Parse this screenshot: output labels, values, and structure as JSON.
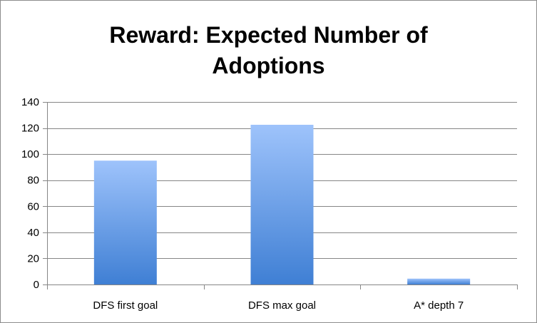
{
  "chart_data": {
    "type": "bar",
    "title_lines": [
      "Reward: Expected Number of",
      "Adoptions"
    ],
    "categories": [
      "DFS first goal",
      "DFS max goal",
      "A* depth 7"
    ],
    "values": [
      95,
      122.5,
      4.5
    ],
    "ylim": [
      0,
      140
    ],
    "yticks": [
      "0",
      "20",
      "40",
      "60",
      "80",
      "100",
      "120",
      "140"
    ],
    "ytick_values": [
      0,
      20,
      40,
      60,
      80,
      100,
      120,
      140
    ],
    "grid": true,
    "legend": "none",
    "colors": {
      "bar_top": "#9ec3fb",
      "bar_bottom": "#3f7fd4",
      "grid": "#868686",
      "axis": "#868686"
    }
  }
}
